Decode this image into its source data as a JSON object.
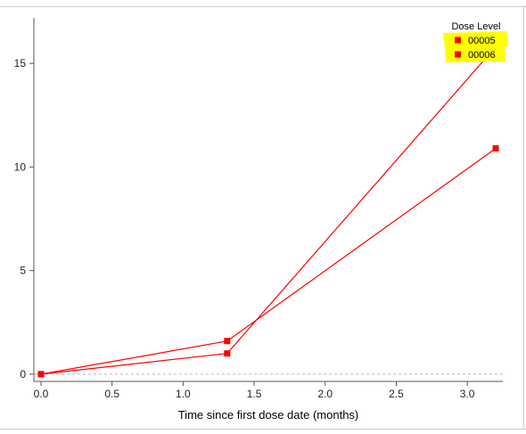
{
  "chart_data": {
    "type": "line",
    "title": "",
    "xlabel": "Time since first dose date (months)",
    "ylabel": "",
    "xlim": [
      -0.05,
      3.25
    ],
    "ylim": [
      -0.35,
      17.2
    ],
    "xticks": [
      0.0,
      0.5,
      1.0,
      1.5,
      2.0,
      2.5,
      3.0
    ],
    "xtick_labels": [
      "0.0",
      "0.5",
      "1.0",
      "1.5",
      "2.0",
      "2.5",
      "3.0"
    ],
    "yticks": [
      0,
      5,
      10,
      15
    ],
    "ytick_labels": [
      "0",
      "5",
      "10",
      "15"
    ],
    "reference_line_y": 0,
    "legend": {
      "title": "Dose Level",
      "placement": "top-right",
      "highlight_color": "#ffff00"
    },
    "series": [
      {
        "name": "00005",
        "x": [
          0.0,
          1.31,
          3.2
        ],
        "y": [
          0,
          1.0,
          15.8
        ],
        "color": "#ff0000"
      },
      {
        "name": "00006",
        "x": [
          0.0,
          1.31,
          3.2
        ],
        "y": [
          0,
          1.6,
          10.9
        ],
        "color": "#ff0000"
      }
    ]
  }
}
